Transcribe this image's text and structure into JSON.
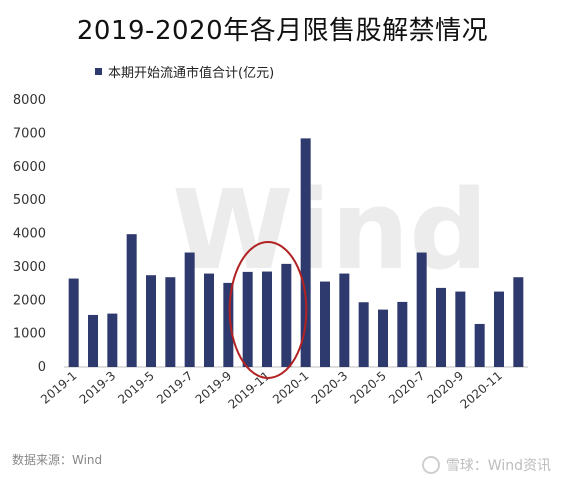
{
  "title": "2019-2020年各月限售股解禁情况",
  "watermark": "Wind",
  "source": "数据来源：Wind",
  "footer": "雪球：Wind资讯",
  "chart_data": {
    "type": "bar",
    "series": [
      {
        "name": "本期开始流通市值合计(亿元)",
        "color": "#2e3a6e",
        "values": [
          2650,
          1560,
          1600,
          3980,
          2750,
          2690,
          3430,
          2800,
          2520,
          2850,
          2860,
          3090,
          6850,
          2560,
          2800,
          1940,
          1720,
          1950,
          3430,
          2370,
          2260,
          1290,
          2260,
          2690
        ]
      }
    ],
    "categories": [
      "2019-1",
      "2019-2",
      "2019-3",
      "2019-4",
      "2019-5",
      "2019-6",
      "2019-7",
      "2019-8",
      "2019-9",
      "2019-10",
      "2019-11",
      "2019-12",
      "2020-1",
      "2020-2",
      "2020-3",
      "2020-4",
      "2020-5",
      "2020-6",
      "2020-7",
      "2020-8",
      "2020-9",
      "2020-10",
      "2020-11",
      "2020-12"
    ],
    "xtick_labels": [
      "2019-1",
      "2019-3",
      "2019-5",
      "2019-7",
      "2019-9",
      "2019-11",
      "2020-1",
      "2020-3",
      "2020-5",
      "2020-7",
      "2020-9",
      "2020-11"
    ],
    "ylim": [
      0,
      8000
    ],
    "yticks": [
      0,
      1000,
      2000,
      3000,
      4000,
      5000,
      6000,
      7000,
      8000
    ],
    "grid": false,
    "legend": "top-left",
    "highlight": {
      "from": "2019-10",
      "to": "2019-12",
      "color": "#b22222"
    }
  }
}
